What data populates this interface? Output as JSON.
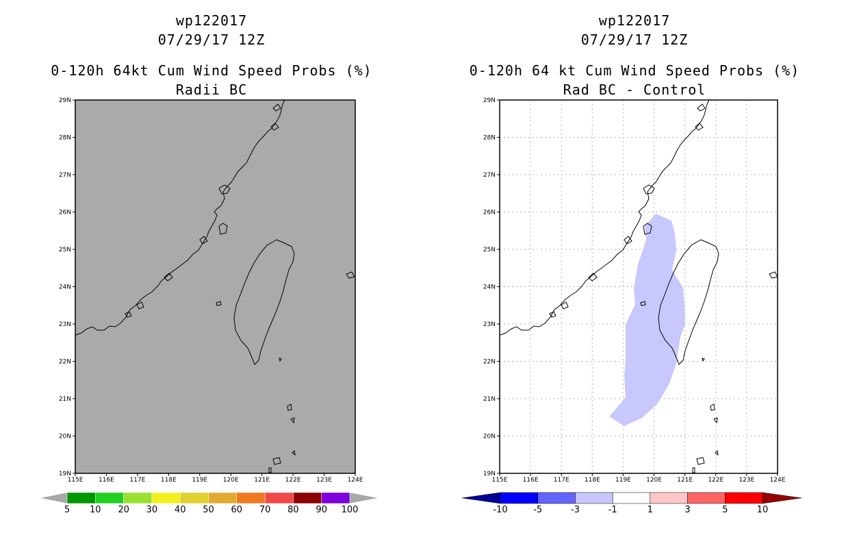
{
  "left": {
    "title_id": "wp122017",
    "title_date": "07/29/17 12Z",
    "title_product": "0-120h 64kt Cum Wind Speed Probs (%)",
    "title_sub": "Radii BC",
    "colorbar": {
      "colors": [
        "#009600",
        "#20d020",
        "#99e033",
        "#f0f020",
        "#e0d030",
        "#e0aa30",
        "#f07820",
        "#f04848",
        "#8c0000",
        "#7b00dc"
      ],
      "labels": [
        "5",
        "10",
        "20",
        "30",
        "40",
        "50",
        "60",
        "70",
        "80",
        "90",
        "100"
      ],
      "end_color": "#a8a8a8"
    }
  },
  "right": {
    "title_id": "wp122017",
    "title_date": "07/29/17 12Z",
    "title_product": "0-120h 64 kt Cum Wind Speed Probs (%)",
    "title_sub": "Rad BC - Control",
    "colorbar": {
      "colors": [
        "#0000ff",
        "#6464ff",
        "#c8c8ff",
        "#ffffff",
        "#ffc8c8",
        "#ff6464",
        "#ff0000"
      ],
      "labels": [
        "-10",
        "-5",
        "-3",
        "-1",
        "1",
        "3",
        "5",
        "10"
      ],
      "low_color": "#000096",
      "high_color": "#960000"
    }
  },
  "axes": {
    "lat_labels": [
      "29N",
      "28N",
      "27N",
      "26N",
      "25N",
      "24N",
      "23N",
      "22N",
      "21N",
      "20N",
      "19N"
    ],
    "lon_labels": [
      "115E",
      "116E",
      "117E",
      "118E",
      "119E",
      "120E",
      "121E",
      "122E",
      "123E",
      "124E"
    ]
  },
  "map": {
    "lon_range": [
      115,
      124
    ],
    "lat_range": [
      19,
      29
    ],
    "left_bg": "#aaaaaa",
    "diff_region_color": "#c8c8ff",
    "diff_region_label": "-3 to -1"
  }
}
